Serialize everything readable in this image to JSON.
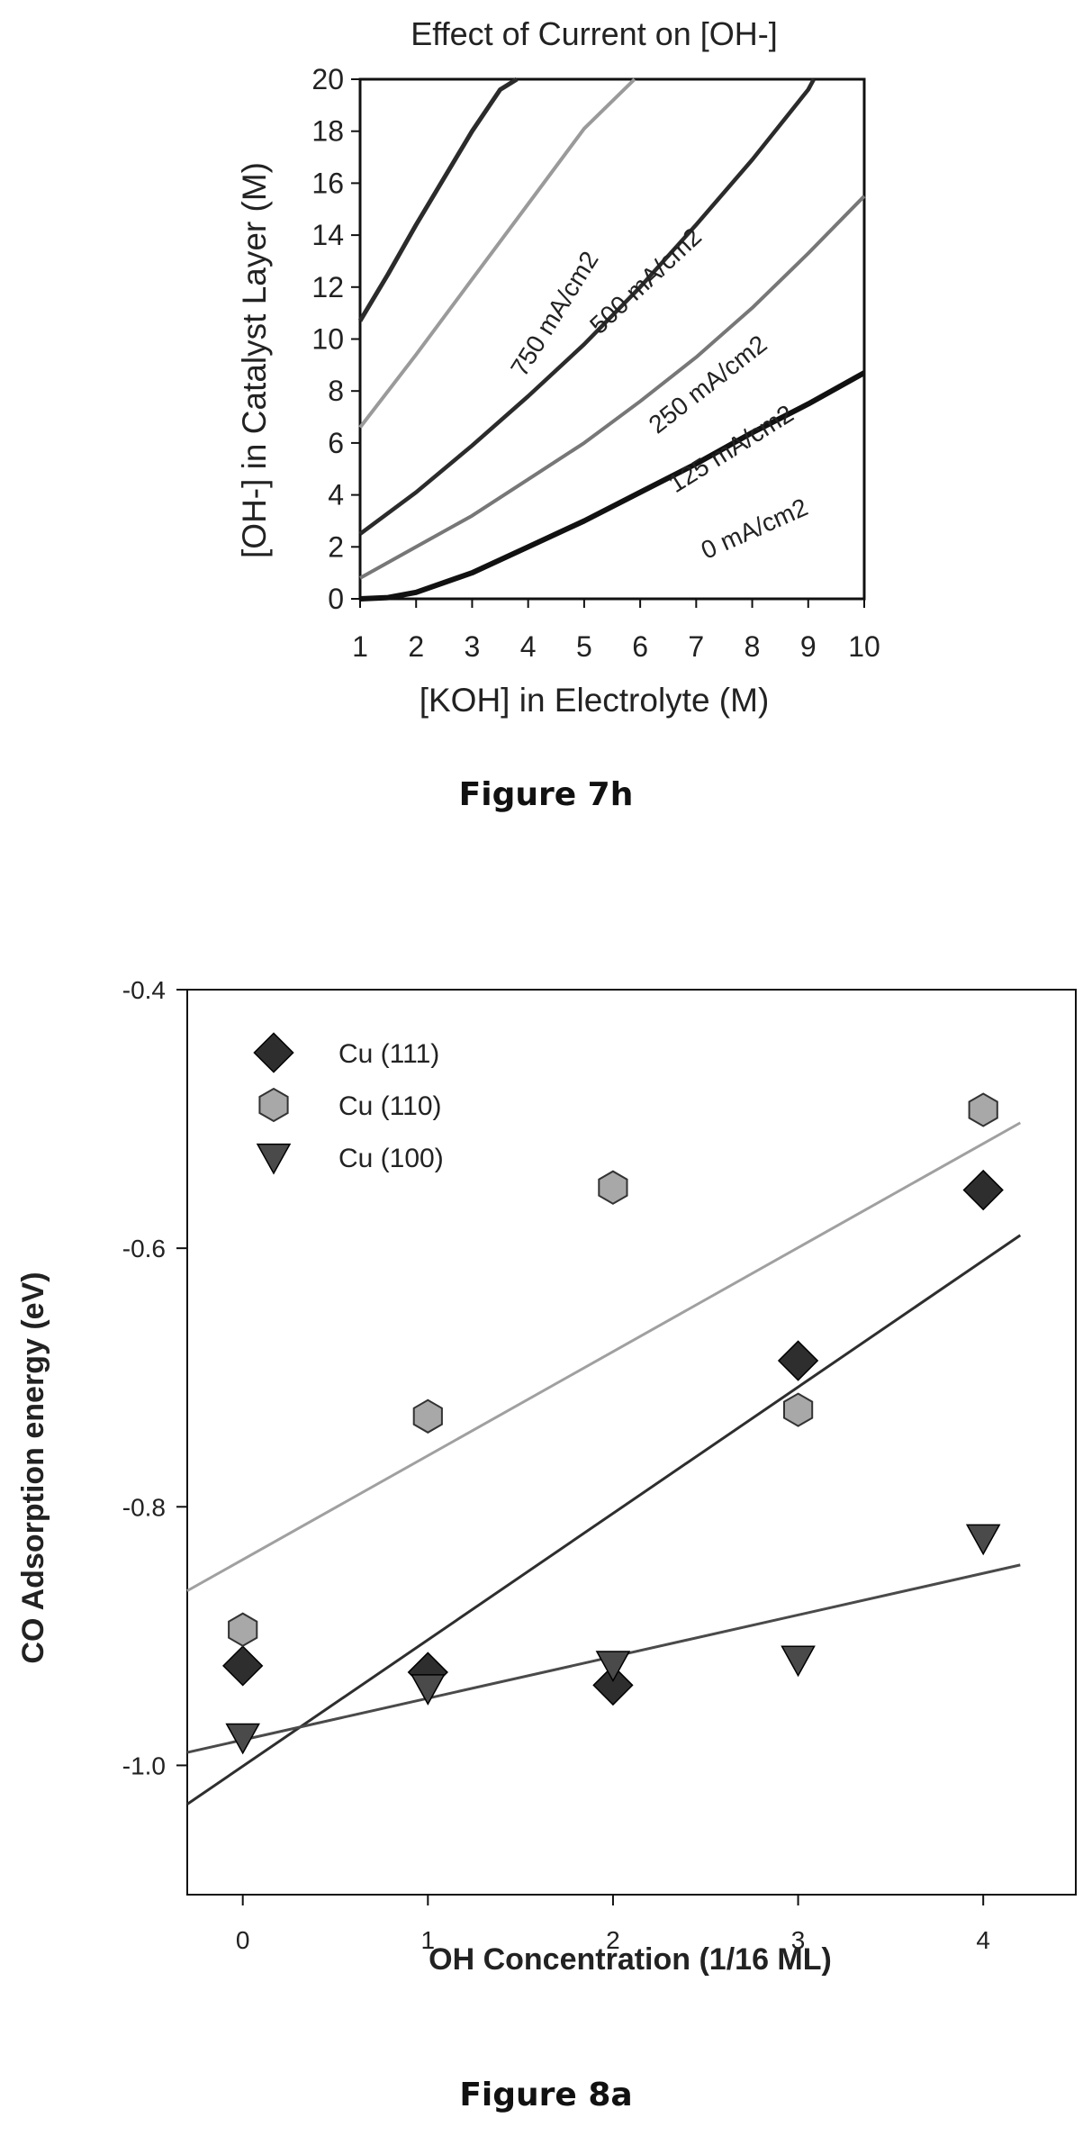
{
  "figure_7h": {
    "caption": "Figure 7h",
    "chart_data": {
      "type": "line",
      "title": "Effect of Current on [OH-]",
      "xlabel": "[KOH] in Electrolyte (M)",
      "ylabel": "[OH-] in Catalyst Layer (M)",
      "xlim": [
        1,
        10
      ],
      "ylim": [
        0,
        20
      ],
      "xticks": [
        "1",
        "2",
        "3",
        "4",
        "5",
        "6",
        "7",
        "8",
        "9",
        "10"
      ],
      "yticks": [
        "0",
        "2",
        "4",
        "6",
        "8",
        "10",
        "12",
        "14",
        "16",
        "18",
        "20"
      ],
      "grid": false,
      "series": [
        {
          "name": "750 mA/cm2",
          "color": "#2b2b2b",
          "x": [
            1,
            1.5,
            2,
            2.5,
            3,
            3.5,
            3.8
          ],
          "y": [
            10.7,
            12.5,
            14.4,
            16.2,
            18.0,
            19.6,
            20.0
          ]
        },
        {
          "name": "500 mA/cm2",
          "color": "#9a9a9a",
          "x": [
            1,
            2,
            3,
            4,
            5,
            5.9
          ],
          "y": [
            6.6,
            9.4,
            12.3,
            15.2,
            18.1,
            20.0
          ]
        },
        {
          "name": "250 mA/cm2",
          "color": "#2b2b2b",
          "x": [
            1,
            2,
            3,
            4,
            5,
            6,
            7,
            8,
            9,
            9.1
          ],
          "y": [
            2.5,
            4.1,
            5.9,
            7.8,
            9.8,
            12.0,
            14.4,
            16.9,
            19.6,
            20.0
          ]
        },
        {
          "name": "125 mA/cm2",
          "color": "#777777",
          "x": [
            1,
            2,
            3,
            4,
            5,
            6,
            7,
            8,
            9,
            10
          ],
          "y": [
            0.8,
            2.0,
            3.2,
            4.6,
            6.0,
            7.6,
            9.3,
            11.2,
            13.3,
            15.5
          ]
        },
        {
          "name": "0 mA/cm2",
          "color": "#111111",
          "x": [
            1,
            1.5,
            2,
            3,
            4,
            5,
            6,
            7,
            8,
            9,
            10
          ],
          "y": [
            0.0,
            0.05,
            0.25,
            1.0,
            2.0,
            3.0,
            4.1,
            5.2,
            6.4,
            7.5,
            8.7
          ]
        }
      ],
      "annotations": [
        "750 mA/cm2",
        "500 mA/cm2",
        "250 mA/cm2",
        "125 mA/cm2",
        "0 mA/cm2"
      ]
    }
  },
  "figure_8a": {
    "caption": "Figure 8a",
    "chart_data": {
      "type": "scatter",
      "xlabel": "OH Concentration (1/16 ML)",
      "ylabel": "CO Adsorption energy (eV)",
      "xlim": [
        -0.3,
        4.5
      ],
      "ylim": [
        -1.1,
        -0.4
      ],
      "xticks": [
        "0",
        "1",
        "2",
        "3",
        "4"
      ],
      "yticks": [
        "-0.4",
        "-0.6",
        "-0.8",
        "-1.0"
      ],
      "grid": false,
      "legend_position": "top-left",
      "series": [
        {
          "name": "Cu (111)",
          "marker": "diamond",
          "color": "#2e2e2e",
          "x": [
            0,
            1,
            2,
            3,
            4
          ],
          "y": [
            -0.923,
            -0.928,
            -0.938,
            -0.687,
            -0.555
          ],
          "fit": {
            "x": [
              -0.3,
              4.2
            ],
            "y": [
              -1.03,
              -0.59
            ],
            "color": "#2e2e2e"
          }
        },
        {
          "name": "Cu (110)",
          "marker": "hexagon",
          "color": "#a8a8a8",
          "x": [
            0,
            1,
            2,
            3,
            4
          ],
          "y": [
            -0.895,
            -0.73,
            -0.553,
            -0.725,
            -0.493
          ],
          "fit": {
            "x": [
              -0.3,
              4.2
            ],
            "y": [
              -0.865,
              -0.503
            ],
            "color": "#a0a0a0"
          }
        },
        {
          "name": "Cu (100)",
          "marker": "triangle-down",
          "color": "#4a4a4a",
          "x": [
            0,
            1,
            2,
            3,
            4
          ],
          "y": [
            -0.978,
            -0.94,
            -0.922,
            -0.918,
            -0.824
          ],
          "fit": {
            "x": [
              -0.3,
              4.2
            ],
            "y": [
              -0.99,
              -0.845
            ],
            "color": "#4a4a4a"
          }
        }
      ]
    }
  }
}
